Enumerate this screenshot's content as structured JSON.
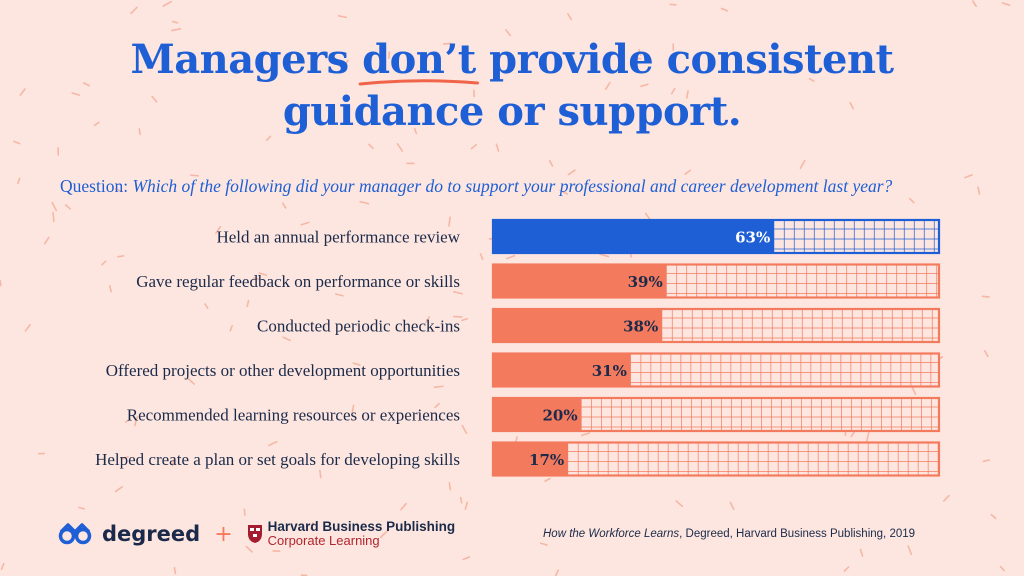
{
  "title": {
    "line1_before": "Managers ",
    "line1_highlight": "don’t",
    "line1_after": " provide consistent",
    "line2": "guidance or support."
  },
  "question": {
    "label": "Question:",
    "text": "Which of the following did your manager do to support your professional and career development last year?"
  },
  "chart_data": {
    "type": "bar",
    "orientation": "horizontal",
    "categories": [
      "Held an annual performance review",
      "Gave regular feedback on performance or skills",
      "Conducted periodic check-ins",
      "Offered projects or other development opportunities",
      "Recommended learning resources or experiences",
      "Helped create a plan or set goals for developing skills"
    ],
    "values": [
      63,
      39,
      38,
      31,
      20,
      17
    ],
    "value_labels": [
      "63%",
      "39%",
      "38%",
      "31%",
      "20%",
      "17%"
    ],
    "xlim": [
      0,
      100
    ],
    "highlight_index": 0,
    "colors": {
      "highlight": "#1e5fd6",
      "default": "#f47a5e"
    }
  },
  "footer": {
    "brand": "degreed",
    "plus": "+",
    "partner_name": "Harvard Business Publishing",
    "partner_sub": "Corporate Learning",
    "source_title": "How the Workforce Learns",
    "source_rest": ", Degreed, Harvard Business Publishing, 2019"
  },
  "colors": {
    "background": "#fde6df",
    "title": "#1e5fd6",
    "accent": "#f47a5e",
    "text": "#1b2a4a"
  },
  "icons": [
    "degreed-glasses-icon",
    "harvard-shield-icon"
  ]
}
